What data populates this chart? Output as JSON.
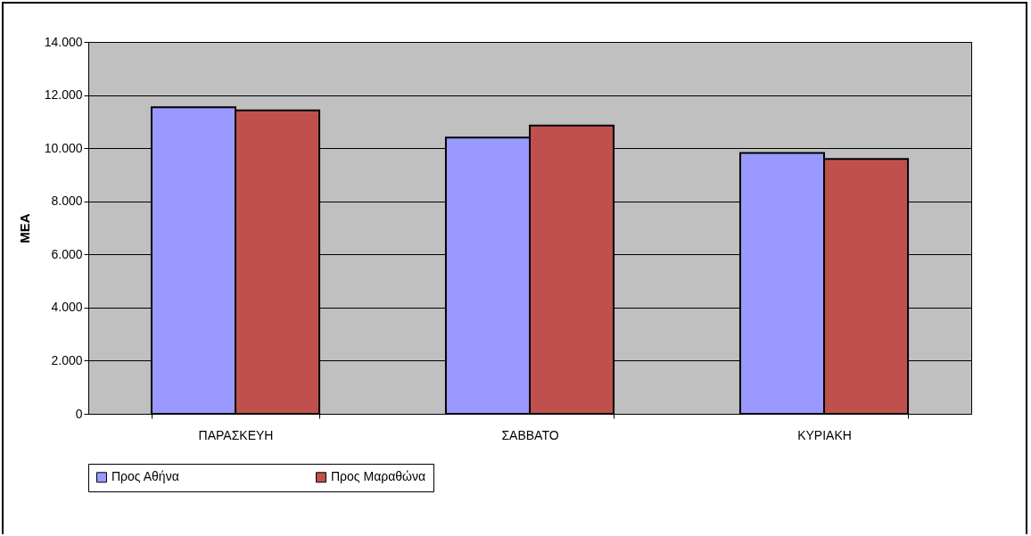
{
  "chart_data": {
    "type": "bar",
    "ylabel": "ΜΕΑ",
    "categories": [
      "ΠΑΡΑΣΚΕΥΗ",
      "ΣΑΒΒΑΤΟ",
      "ΚΥΡΙΑΚΗ"
    ],
    "series": [
      {
        "name": "Προς Αθήνα",
        "color": "#9999ff",
        "values": [
          11540,
          10400,
          9820
        ]
      },
      {
        "name": "Προς Μαραθώνα",
        "color": "#c0504d",
        "values": [
          11420,
          10850,
          9590
        ]
      }
    ],
    "ylim": [
      0,
      14000
    ],
    "yticks": [
      {
        "value": 0,
        "label": "0"
      },
      {
        "value": 2000,
        "label": "2.000"
      },
      {
        "value": 4000,
        "label": "4.000"
      },
      {
        "value": 6000,
        "label": "6.000"
      },
      {
        "value": 8000,
        "label": "8.000"
      },
      {
        "value": 10000,
        "label": "10.000"
      },
      {
        "value": 12000,
        "label": "12.000"
      },
      {
        "value": 14000,
        "label": "14.000"
      }
    ],
    "grid": "y",
    "legend": "bottom"
  }
}
